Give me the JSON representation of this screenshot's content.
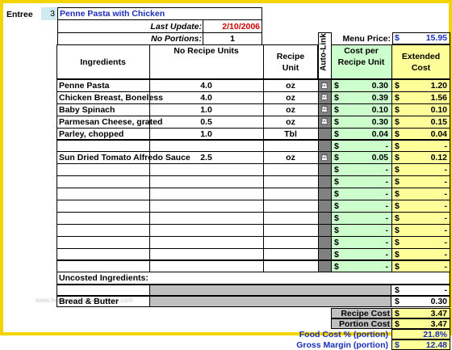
{
  "entree_label": "Entree",
  "entree_number": "3",
  "recipe_name": "Penne Pasta with Chicken",
  "last_update_label": "Last Update:",
  "last_update_value": "2/10/2006",
  "portions_label": "No Portions:",
  "portions_value": "1",
  "menu_price_label": "Menu Price:",
  "menu_price_currency": "$",
  "menu_price_value": "15.95",
  "headers": {
    "ingredients": "Ingredients",
    "no_recipe_units": "No Recipe Units",
    "recipe_unit": "Recipe Unit",
    "auto_link": "Auto-Link",
    "cost_per_recipe_unit": "Cost per Recipe Unit",
    "extended_cost": "Extended Cost"
  },
  "currency_symbol": "$",
  "dash": "-",
  "check_mark": "☑",
  "rows": [
    {
      "name": "Penne Pasta",
      "units": "4.0",
      "unit": "oz",
      "check": true,
      "cost": "0.30",
      "ext": "1.20"
    },
    {
      "name": "Chicken Breast, Boneless",
      "units": "4.0",
      "unit": "oz",
      "check": true,
      "cost": "0.39",
      "ext": "1.56"
    },
    {
      "name": "Baby Spinach",
      "units": "1.0",
      "unit": "oz",
      "check": true,
      "cost": "0.10",
      "ext": "0.10"
    },
    {
      "name": "Parmesan Cheese, grated",
      "units": "0.5",
      "unit": "oz",
      "check": true,
      "cost": "0.30",
      "ext": "0.15"
    },
    {
      "name": "Parley, chopped",
      "units": "1.0",
      "unit": "Tbl",
      "check": false,
      "cost": "0.04",
      "ext": "0.04"
    },
    {
      "name": "",
      "units": "",
      "unit": "",
      "check": false,
      "cost": "-",
      "ext": "-"
    },
    {
      "name": "Sun Dried Tomato Alfredo Sauce",
      "units": "2.5",
      "unit": "oz",
      "check": true,
      "cost": "0.05",
      "ext": "0.12"
    },
    {
      "name": "",
      "units": "",
      "unit": "",
      "check": false,
      "cost": "-",
      "ext": "-"
    },
    {
      "name": "",
      "units": "",
      "unit": "",
      "check": false,
      "cost": "-",
      "ext": "-"
    },
    {
      "name": "",
      "units": "",
      "unit": "",
      "check": false,
      "cost": "-",
      "ext": "-"
    },
    {
      "name": "",
      "units": "",
      "unit": "",
      "check": false,
      "cost": "-",
      "ext": "-"
    },
    {
      "name": "",
      "units": "",
      "unit": "",
      "check": false,
      "cost": "-",
      "ext": "-"
    },
    {
      "name": "",
      "units": "",
      "unit": "",
      "check": false,
      "cost": "-",
      "ext": "-"
    },
    {
      "name": "",
      "units": "",
      "unit": "",
      "check": false,
      "cost": "-",
      "ext": "-"
    },
    {
      "name": "",
      "units": "",
      "unit": "",
      "check": false,
      "cost": "-",
      "ext": "-"
    },
    {
      "name": "",
      "units": "",
      "unit": "",
      "check": false,
      "cost": "-",
      "ext": "-"
    }
  ],
  "uncosted_label": "Uncosted Ingredients:",
  "uncosted_dash": "-",
  "bread_label": "Bread & Butter",
  "bread_value": "0.30",
  "recipe_cost_label": "Recipe Cost",
  "recipe_cost_value": "3.47",
  "portion_cost_label": "Portion Cost",
  "portion_cost_value": "3.47",
  "food_cost_label": "Food Cost % (portion)",
  "food_cost_value": "21.8%",
  "gross_margin_label": "Gross Margin (portion)",
  "gross_margin_value": "12.48",
  "watermark": "www.heritagechristiancollege.com"
}
